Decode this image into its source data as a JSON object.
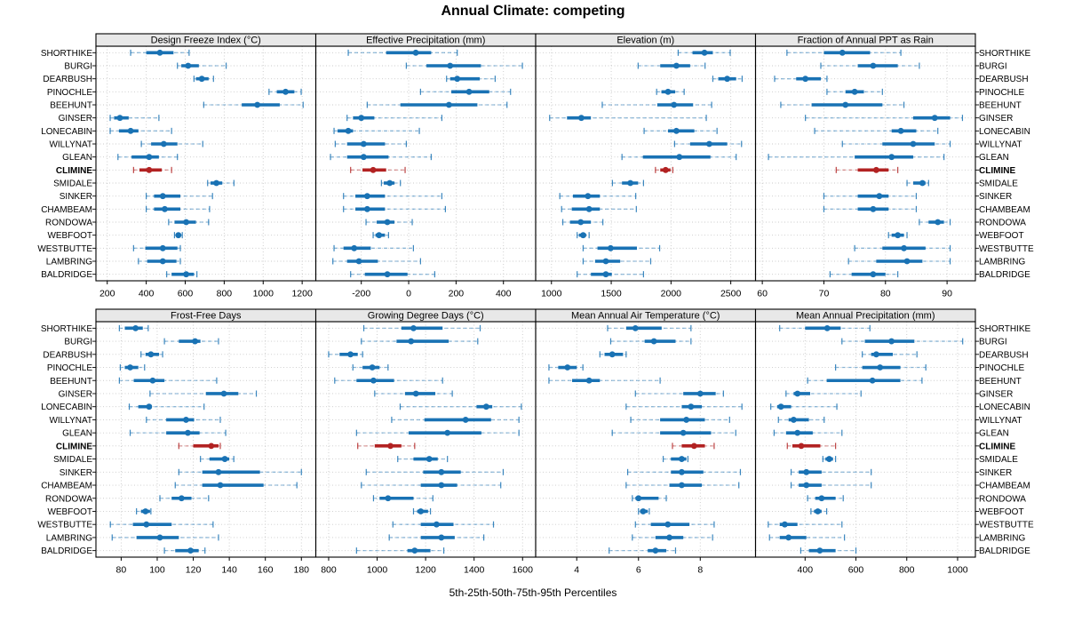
{
  "title": "Annual Climate: competing",
  "footer": "5th-25th-50th-75th-95th Percentiles",
  "percentile_labels": [
    "5th",
    "25th",
    "50th",
    "75th",
    "95th"
  ],
  "stations": [
    "SHORTHIKE",
    "BURGI",
    "DEARBUSH",
    "PINOCHLE",
    "BEEHUNT",
    "GINSER",
    "LONECABIN",
    "WILLYNAT",
    "GLEAN",
    "CLIMINE",
    "SMIDALE",
    "SINKER",
    "CHAMBEAM",
    "RONDOWA",
    "WEBFOOT",
    "WESTBUTTE",
    "LAMBRING",
    "BALDRIDGE"
  ],
  "highlight_station": "CLIMINE",
  "colors": {
    "series": "#1972b4",
    "highlight": "#b22222",
    "grid": "#c9c9c9",
    "header_bg": "#e8e8e8",
    "border": "#000000",
    "text": "#000000"
  },
  "chart_data": {
    "type": "scatter",
    "variant": "five-number-percentile-intervals",
    "legend_position": "none",
    "grid": true,
    "panels": [
      {
        "key": "design-freeze-index",
        "title": "Design Freeze Index (°C)",
        "row": 0,
        "col": 0,
        "ticks": [
          200,
          400,
          600,
          800,
          1000,
          1200
        ],
        "domain": [
          142,
          1270
        ],
        "values": [
          [
            320,
            400,
            470,
            540,
            620
          ],
          [
            560,
            580,
            615,
            670,
            810
          ],
          [
            645,
            655,
            685,
            720,
            745
          ],
          [
            1030,
            1070,
            1115,
            1160,
            1195
          ],
          [
            695,
            890,
            970,
            1085,
            1205
          ],
          [
            215,
            235,
            265,
            310,
            465
          ],
          [
            215,
            260,
            320,
            360,
            530
          ],
          [
            375,
            425,
            490,
            560,
            690
          ],
          [
            255,
            325,
            415,
            465,
            560
          ],
          [
            335,
            365,
            415,
            480,
            530
          ],
          [
            715,
            730,
            760,
            790,
            850
          ],
          [
            400,
            440,
            485,
            575,
            740
          ],
          [
            400,
            440,
            495,
            575,
            725
          ],
          [
            515,
            545,
            605,
            655,
            720
          ],
          [
            545,
            552,
            565,
            577,
            585
          ],
          [
            335,
            395,
            485,
            560,
            575
          ],
          [
            360,
            405,
            485,
            555,
            575
          ],
          [
            505,
            530,
            605,
            645,
            660
          ]
        ]
      },
      {
        "key": "effective-precipitation",
        "title": "Effective Precipitation (mm)",
        "row": 0,
        "col": 1,
        "ticks": [
          -200,
          0,
          200,
          400
        ],
        "domain": [
          -392,
          536
        ],
        "values": [
          [
            -255,
            -95,
            30,
            95,
            205
          ],
          [
            -10,
            75,
            175,
            305,
            480
          ],
          [
            160,
            175,
            205,
            300,
            365
          ],
          [
            50,
            180,
            255,
            340,
            430
          ],
          [
            -175,
            -35,
            170,
            290,
            415
          ],
          [
            -260,
            -235,
            -200,
            -145,
            140
          ],
          [
            -315,
            -300,
            -255,
            -235,
            45
          ],
          [
            -310,
            -260,
            -190,
            -100,
            -10
          ],
          [
            -330,
            -260,
            -190,
            -85,
            95
          ],
          [
            -245,
            -195,
            -150,
            -95,
            -15
          ],
          [
            -115,
            -105,
            -80,
            -60,
            -35
          ],
          [
            -275,
            -225,
            -175,
            -100,
            140
          ],
          [
            -275,
            -225,
            -175,
            -100,
            155
          ],
          [
            -180,
            -135,
            -90,
            -60,
            15
          ],
          [
            -150,
            -140,
            -125,
            -100,
            -85
          ],
          [
            -315,
            -275,
            -230,
            -160,
            20
          ],
          [
            -320,
            -260,
            -210,
            -130,
            50
          ],
          [
            -245,
            -185,
            -90,
            -5,
            110
          ]
        ]
      },
      {
        "key": "elevation",
        "title": "Elevation (m)",
        "row": 0,
        "col": 2,
        "ticks": [
          1000,
          1500,
          2000,
          2500
        ],
        "domain": [
          868,
          2707
        ],
        "values": [
          [
            2060,
            2180,
            2280,
            2350,
            2495
          ],
          [
            1725,
            1910,
            2045,
            2160,
            2285
          ],
          [
            2350,
            2395,
            2470,
            2545,
            2595
          ],
          [
            1880,
            1920,
            1975,
            2035,
            2110
          ],
          [
            1425,
            1885,
            2025,
            2185,
            2340
          ],
          [
            985,
            1130,
            1250,
            1330,
            2295
          ],
          [
            1775,
            1975,
            2045,
            2195,
            2385
          ],
          [
            2030,
            2160,
            2320,
            2470,
            2590
          ],
          [
            1590,
            1765,
            2070,
            2330,
            2545
          ],
          [
            1870,
            1910,
            1955,
            1995,
            2015
          ],
          [
            1510,
            1590,
            1660,
            1725,
            1770
          ],
          [
            1070,
            1180,
            1305,
            1405,
            1705
          ],
          [
            1085,
            1170,
            1315,
            1405,
            1710
          ],
          [
            1095,
            1155,
            1245,
            1330,
            1430
          ],
          [
            1215,
            1230,
            1265,
            1290,
            1315
          ],
          [
            1265,
            1385,
            1495,
            1715,
            1905
          ],
          [
            1265,
            1365,
            1455,
            1575,
            1830
          ],
          [
            1215,
            1330,
            1455,
            1505,
            1770
          ]
        ]
      },
      {
        "key": "fraction-ppt-as-rain",
        "title": "Fraction of Annual PPT as Rain",
        "row": 0,
        "col": 3,
        "ticks": [
          60,
          70,
          80,
          90
        ],
        "domain": [
          58.9,
          94.6
        ],
        "values": [
          [
            64,
            70,
            73,
            77.5,
            82.5
          ],
          [
            69.5,
            75.5,
            78,
            82,
            85.5
          ],
          [
            62,
            65.5,
            67,
            69.5,
            70.5
          ],
          [
            70.5,
            73.5,
            75,
            76.5,
            79.5
          ],
          [
            63,
            68,
            73.5,
            79.5,
            83
          ],
          [
            67,
            84.5,
            88,
            90.5,
            92.5
          ],
          [
            68.5,
            81,
            82.5,
            85,
            88.5
          ],
          [
            73,
            79.5,
            84.5,
            88,
            90.5
          ],
          [
            61,
            75,
            81,
            84.5,
            89.5
          ],
          [
            72,
            75.5,
            78.5,
            80.5,
            82
          ],
          [
            83.5,
            84.5,
            86,
            86.5,
            87
          ],
          [
            70,
            75.5,
            79,
            80.5,
            85
          ],
          [
            70,
            75.5,
            78,
            80.5,
            85
          ],
          [
            85.5,
            87,
            88.5,
            89.5,
            90.5
          ],
          [
            80.5,
            81,
            82,
            83,
            83.5
          ],
          [
            75,
            79.5,
            83,
            86.5,
            90.5
          ],
          [
            74,
            78.5,
            83.5,
            86,
            90.5
          ],
          [
            71,
            74.5,
            78,
            80,
            82
          ]
        ]
      },
      {
        "key": "frost-free-days",
        "title": "Frost-Free Days",
        "row": 1,
        "col": 0,
        "ticks": [
          80,
          100,
          120,
          140,
          160,
          180
        ],
        "domain": [
          66,
          188
        ],
        "values": [
          [
            79,
            82,
            88,
            92,
            95
          ],
          [
            104,
            112,
            121,
            124,
            134
          ],
          [
            91,
            93.5,
            96.5,
            101,
            103
          ],
          [
            79.5,
            82,
            85,
            89.5,
            93
          ],
          [
            79,
            87,
            97.5,
            104,
            133
          ],
          [
            96,
            127,
            137,
            145,
            155
          ],
          [
            84.5,
            89.5,
            95.5,
            97,
            126
          ],
          [
            94,
            105,
            116,
            120.5,
            135
          ],
          [
            85,
            105,
            117,
            123.5,
            138
          ],
          [
            112,
            120,
            130,
            134,
            135
          ],
          [
            124,
            129,
            137.5,
            140,
            142.5
          ],
          [
            112,
            125,
            134,
            157,
            180
          ],
          [
            110,
            125,
            135,
            159,
            177.5
          ],
          [
            101.5,
            108,
            113.5,
            119,
            128.5
          ],
          [
            88.5,
            91,
            93.5,
            96,
            96.5
          ],
          [
            74,
            86.5,
            94,
            108,
            131
          ],
          [
            75,
            88.5,
            101.5,
            112,
            134
          ],
          [
            104,
            110,
            118.5,
            123,
            126.5
          ]
        ]
      },
      {
        "key": "growing-degree-days",
        "title": "Growing Degree Days (°C)",
        "row": 1,
        "col": 1,
        "ticks": [
          800,
          1000,
          1200,
          1400,
          1600
        ],
        "domain": [
          747,
          1654
        ],
        "values": [
          [
            945,
            1100,
            1150,
            1270,
            1425
          ],
          [
            935,
            1080,
            1140,
            1295,
            1415
          ],
          [
            800,
            845,
            890,
            920,
            940
          ],
          [
            900,
            940,
            980,
            1010,
            1045
          ],
          [
            825,
            915,
            985,
            1070,
            1270
          ],
          [
            990,
            1115,
            1160,
            1240,
            1310
          ],
          [
            1095,
            1410,
            1450,
            1475,
            1595
          ],
          [
            1060,
            1195,
            1365,
            1470,
            1585
          ],
          [
            915,
            1130,
            1290,
            1430,
            1585
          ],
          [
            920,
            990,
            1055,
            1100,
            1155
          ],
          [
            1085,
            1150,
            1215,
            1250,
            1290
          ],
          [
            955,
            1190,
            1265,
            1345,
            1520
          ],
          [
            935,
            1180,
            1265,
            1330,
            1510
          ],
          [
            985,
            1010,
            1045,
            1150,
            1230
          ],
          [
            1150,
            1165,
            1180,
            1210,
            1220
          ],
          [
            1065,
            1180,
            1245,
            1315,
            1480
          ],
          [
            1050,
            1180,
            1265,
            1320,
            1440
          ],
          [
            915,
            1125,
            1155,
            1220,
            1275
          ]
        ]
      },
      {
        "key": "mean-annual-air-temperature",
        "title": "Mean Annual Air Temperature (°C)",
        "row": 1,
        "col": 2,
        "ticks": [
          4,
          6,
          8
        ],
        "domain": [
          2.67,
          9.79
        ],
        "values": [
          [
            5.0,
            5.6,
            5.9,
            6.75,
            7.7
          ],
          [
            5.1,
            6.2,
            6.5,
            7.2,
            7.7
          ],
          [
            4.75,
            4.9,
            5.15,
            5.5,
            5.6
          ],
          [
            3.1,
            3.4,
            3.7,
            4.0,
            4.2
          ],
          [
            3.1,
            3.85,
            4.4,
            4.75,
            6.7
          ],
          [
            5.9,
            7.45,
            8.0,
            8.5,
            8.75
          ],
          [
            5.6,
            7.4,
            7.7,
            8.05,
            9.35
          ],
          [
            5.75,
            6.7,
            7.55,
            8.15,
            8.95
          ],
          [
            5.15,
            6.7,
            7.45,
            8.35,
            9.15
          ],
          [
            7.1,
            7.4,
            7.8,
            8.15,
            8.45
          ],
          [
            6.8,
            7.05,
            7.4,
            7.55,
            7.6
          ],
          [
            5.65,
            7.05,
            7.4,
            8.1,
            9.3
          ],
          [
            5.6,
            7.0,
            7.4,
            8.05,
            9.25
          ],
          [
            5.8,
            5.9,
            6.0,
            6.65,
            6.9
          ],
          [
            6.0,
            6.05,
            6.15,
            6.3,
            6.35
          ],
          [
            5.9,
            6.4,
            6.95,
            7.65,
            8.45
          ],
          [
            5.8,
            6.55,
            7.0,
            7.45,
            8.4
          ],
          [
            5.05,
            6.3,
            6.55,
            6.9,
            7.2
          ]
        ]
      },
      {
        "key": "mean-annual-precipitation",
        "title": "Mean Annual Precipitation (mm)",
        "row": 1,
        "col": 3,
        "ticks": [
          400,
          600,
          800,
          1000
        ],
        "domain": [
          205,
          1070
        ],
        "values": [
          [
            300,
            400,
            487,
            540,
            655
          ],
          [
            545,
            635,
            740,
            830,
            1020
          ],
          [
            625,
            660,
            680,
            745,
            840
          ],
          [
            520,
            625,
            695,
            775,
            875
          ],
          [
            410,
            485,
            665,
            775,
            860
          ],
          [
            325,
            355,
            370,
            420,
            620
          ],
          [
            265,
            290,
            305,
            345,
            525
          ],
          [
            295,
            335,
            355,
            415,
            475
          ],
          [
            278,
            325,
            370,
            430,
            545
          ],
          [
            330,
            350,
            385,
            460,
            520
          ],
          [
            470,
            480,
            495,
            510,
            520
          ],
          [
            345,
            375,
            405,
            465,
            660
          ],
          [
            345,
            375,
            405,
            465,
            660
          ],
          [
            410,
            440,
            465,
            520,
            550
          ],
          [
            423,
            435,
            450,
            465,
            485
          ],
          [
            255,
            300,
            320,
            370,
            545
          ],
          [
            260,
            300,
            335,
            405,
            555
          ],
          [
            383,
            415,
            458,
            520,
            600
          ]
        ]
      }
    ]
  }
}
